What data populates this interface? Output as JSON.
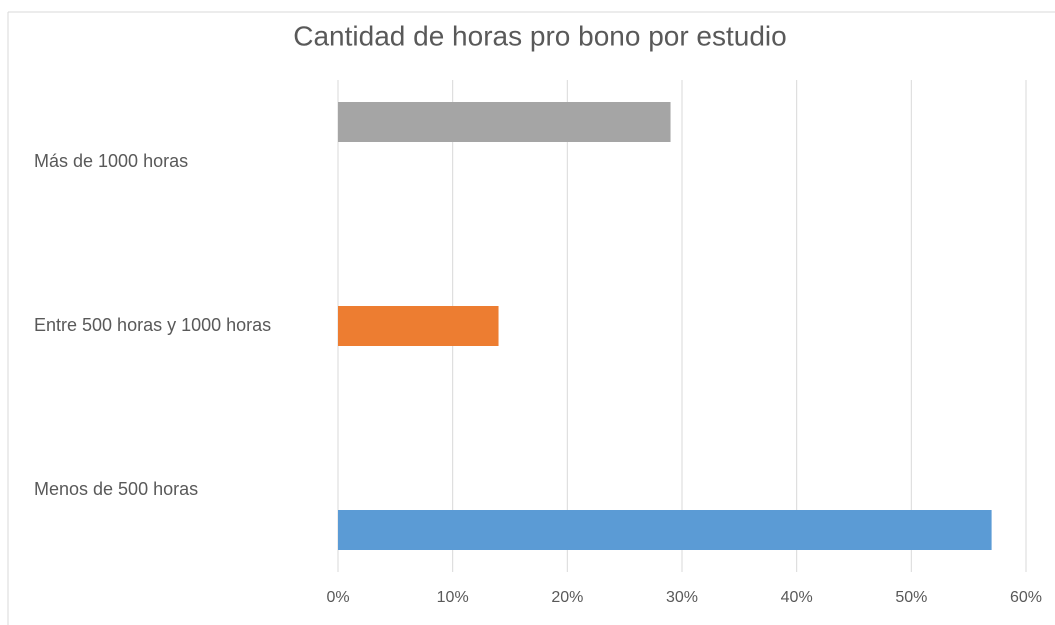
{
  "chart_data": {
    "type": "bar",
    "orientation": "horizontal",
    "title": "Cantidad de horas pro bono por estudio",
    "categories": [
      "Menos de 500 horas",
      "Entre 500 horas y 1000 horas",
      "Más de 1000 horas"
    ],
    "values": [
      57,
      14,
      29
    ],
    "colors": [
      "#5b9bd5",
      "#ed7d31",
      "#a5a5a5"
    ],
    "xlim": [
      0,
      60
    ],
    "xticks": [
      {
        "value": 0,
        "label": "0%"
      },
      {
        "value": 10,
        "label": "10%"
      },
      {
        "value": 20,
        "label": "20%"
      },
      {
        "value": 30,
        "label": "30%"
      },
      {
        "value": 40,
        "label": "40%"
      },
      {
        "value": 50,
        "label": "50%"
      },
      {
        "value": 60,
        "label": "60%"
      }
    ],
    "grid": true
  }
}
